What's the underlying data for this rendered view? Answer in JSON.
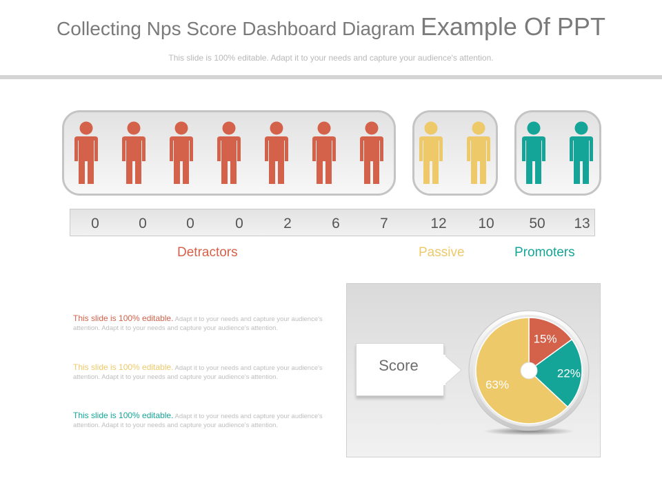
{
  "header": {
    "title_main": "Collecting Nps Score Dashboard Diagram",
    "title_accent": "Example Of PPT",
    "subtitle": "This slide is 100% editable. Adapt it to your needs and capture your audience's attention."
  },
  "colors": {
    "detractor": "#d4614a",
    "passive": "#eec96a",
    "promoter": "#14a598"
  },
  "scale": {
    "values": [
      "0",
      "0",
      "0",
      "0",
      "2",
      "6",
      "7",
      "12",
      "10",
      "50",
      "13"
    ]
  },
  "groups": {
    "detractors": {
      "label": "Detractors",
      "count": 7
    },
    "passive": {
      "label": "Passive",
      "count": 2
    },
    "promoters": {
      "label": "Promoters",
      "count": 2
    }
  },
  "descriptions": [
    {
      "highlight": "This slide is 100% editable.",
      "body": "Adapt it to your needs and capture your audience's attention. Adapt it to your needs and capture your audience's attention."
    },
    {
      "highlight": "This slide is 100% editable.",
      "body": "Adapt it to your needs and capture your audience's attention. Adapt it to your needs and capture your audience's attention."
    },
    {
      "highlight": "This slide is 100% editable.",
      "body": "Adapt it to your needs and capture your audience's attention. Adapt it to your needs and capture your audience's attention."
    }
  ],
  "score": {
    "label": "Score",
    "slices": [
      {
        "value": 15,
        "label": "15%",
        "color": "#d4614a"
      },
      {
        "value": 22,
        "label": "22%",
        "color": "#14a598"
      },
      {
        "value": 63,
        "label": "63%",
        "color": "#eec96a"
      }
    ]
  }
}
